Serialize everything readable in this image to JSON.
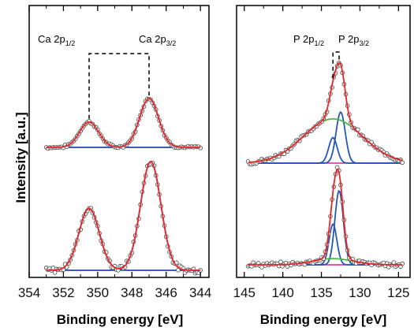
{
  "colors": {
    "data_points": "#555555",
    "fit": "#e8262a",
    "component": "#2457b5",
    "background_component": "#4cb847",
    "baseline": "#cc2a9a",
    "connector": "#000000"
  },
  "labels": {
    "ylabel": "Intensity [a.u.]",
    "left_xlabel": "Binding energy [eV]",
    "right_xlabel": "Binding energy [eV]",
    "ca_p12_main": "Ca 2p",
    "ca_p12_sub": "1/2",
    "ca_p32_main": "Ca 2p",
    "ca_p32_sub": "3/2",
    "p_p12_main": "P 2p",
    "p_p12_sub": "1/2",
    "p_p32_main": "P 2p",
    "p_p32_sub": "3/2"
  },
  "chart_data": [
    {
      "type": "scatter",
      "panel": "left",
      "title": "",
      "xlabel": "Binding energy [eV]",
      "ylabel": "Intensity [a.u.]",
      "xlim": [
        354,
        343.5
      ],
      "x_reversed": true,
      "xticks": [
        354,
        352,
        350,
        348,
        346,
        344
      ],
      "yticks": [],
      "grid": false,
      "annotations": [
        {
          "text": "Ca 2p1/2",
          "x": 350.5
        },
        {
          "text": "Ca 2p3/2",
          "x": 347.0
        }
      ],
      "spectra": [
        {
          "position": "top",
          "x_range": [
            353,
            344
          ],
          "peaks": [
            {
              "label": "Ca 2p1/2",
              "center": 350.5,
              "relative_height": 0.52,
              "fwhm": 1.3
            },
            {
              "label": "Ca 2p3/2",
              "center": 347.0,
              "relative_height": 1.0,
              "fwhm": 1.3
            }
          ]
        },
        {
          "position": "bottom",
          "x_range": [
            353,
            344
          ],
          "peaks": [
            {
              "label": "Ca 2p1/2",
              "center": 350.5,
              "relative_height": 0.57,
              "fwhm": 1.4
            },
            {
              "label": "Ca 2p3/2",
              "center": 346.9,
              "relative_height": 1.0,
              "fwhm": 1.4
            }
          ]
        }
      ]
    },
    {
      "type": "scatter",
      "panel": "right",
      "title": "",
      "xlabel": "Binding energy [eV]",
      "ylabel": "",
      "xlim": [
        146,
        123.5
      ],
      "x_reversed": true,
      "xticks": [
        145,
        140,
        135,
        130,
        125
      ],
      "yticks": [],
      "grid": false,
      "annotations": [
        {
          "text": "P 2p1/2",
          "x": 133.5
        },
        {
          "text": "P 2p3/2",
          "x": 132.7
        }
      ],
      "spectra": [
        {
          "position": "top",
          "x_range": [
            144.5,
            124.5
          ],
          "peaks": [
            {
              "label": "P 2p1/2",
              "center": 133.5,
              "relative_height": 0.3,
              "fwhm": 1.3
            },
            {
              "label": "P 2p3/2",
              "center": 132.5,
              "relative_height": 0.6,
              "fwhm": 1.4
            },
            {
              "label": "broad",
              "center": 133.5,
              "relative_height": 0.52,
              "fwhm": 9
            }
          ]
        },
        {
          "position": "bottom",
          "x_range": [
            144.5,
            124.5
          ],
          "peaks": [
            {
              "label": "P 2p1/2",
              "center": 133.5,
              "relative_height": 0.46,
              "fwhm": 1.2
            },
            {
              "label": "P 2p3/2",
              "center": 132.7,
              "relative_height": 0.84,
              "fwhm": 1.3
            },
            {
              "label": "broad",
              "center": 133.5,
              "relative_height": 0.07,
              "fwhm": 6
            }
          ]
        }
      ]
    }
  ]
}
